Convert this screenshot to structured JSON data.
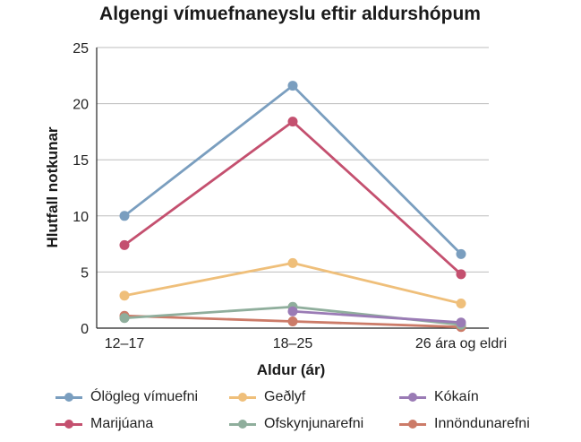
{
  "chart_data": {
    "type": "line",
    "title": "Algengi vímuefnaneyslu eftir aldurshópum",
    "xlabel": "Aldur (ár)",
    "ylabel": "Hlutfall notkunar",
    "categories": [
      "12–17",
      "18–25",
      "26 ára og eldri"
    ],
    "ylim": [
      0,
      25
    ],
    "yticks": [
      0,
      5,
      10,
      15,
      20,
      25
    ],
    "grid": true,
    "legend_position": "bottom",
    "series": [
      {
        "name": "Ólögleg vímuefni",
        "values": [
          10.0,
          21.6,
          6.6
        ],
        "color": "#7a9ebf"
      },
      {
        "name": "Marijúana",
        "values": [
          7.4,
          18.4,
          4.8
        ],
        "color": "#c4506f"
      },
      {
        "name": "Geðlyf",
        "values": [
          2.9,
          5.8,
          2.2
        ],
        "color": "#efbf7a"
      },
      {
        "name": "Ofskynjunarefni",
        "values": [
          0.9,
          1.9,
          0.3
        ],
        "color": "#8fae9c"
      },
      {
        "name": "Kókaín",
        "values": [
          null,
          1.5,
          0.5
        ],
        "color": "#9a7bb5"
      },
      {
        "name": "Innöndunarefni",
        "values": [
          1.1,
          0.6,
          0.1
        ],
        "color": "#cc7b68"
      }
    ]
  }
}
